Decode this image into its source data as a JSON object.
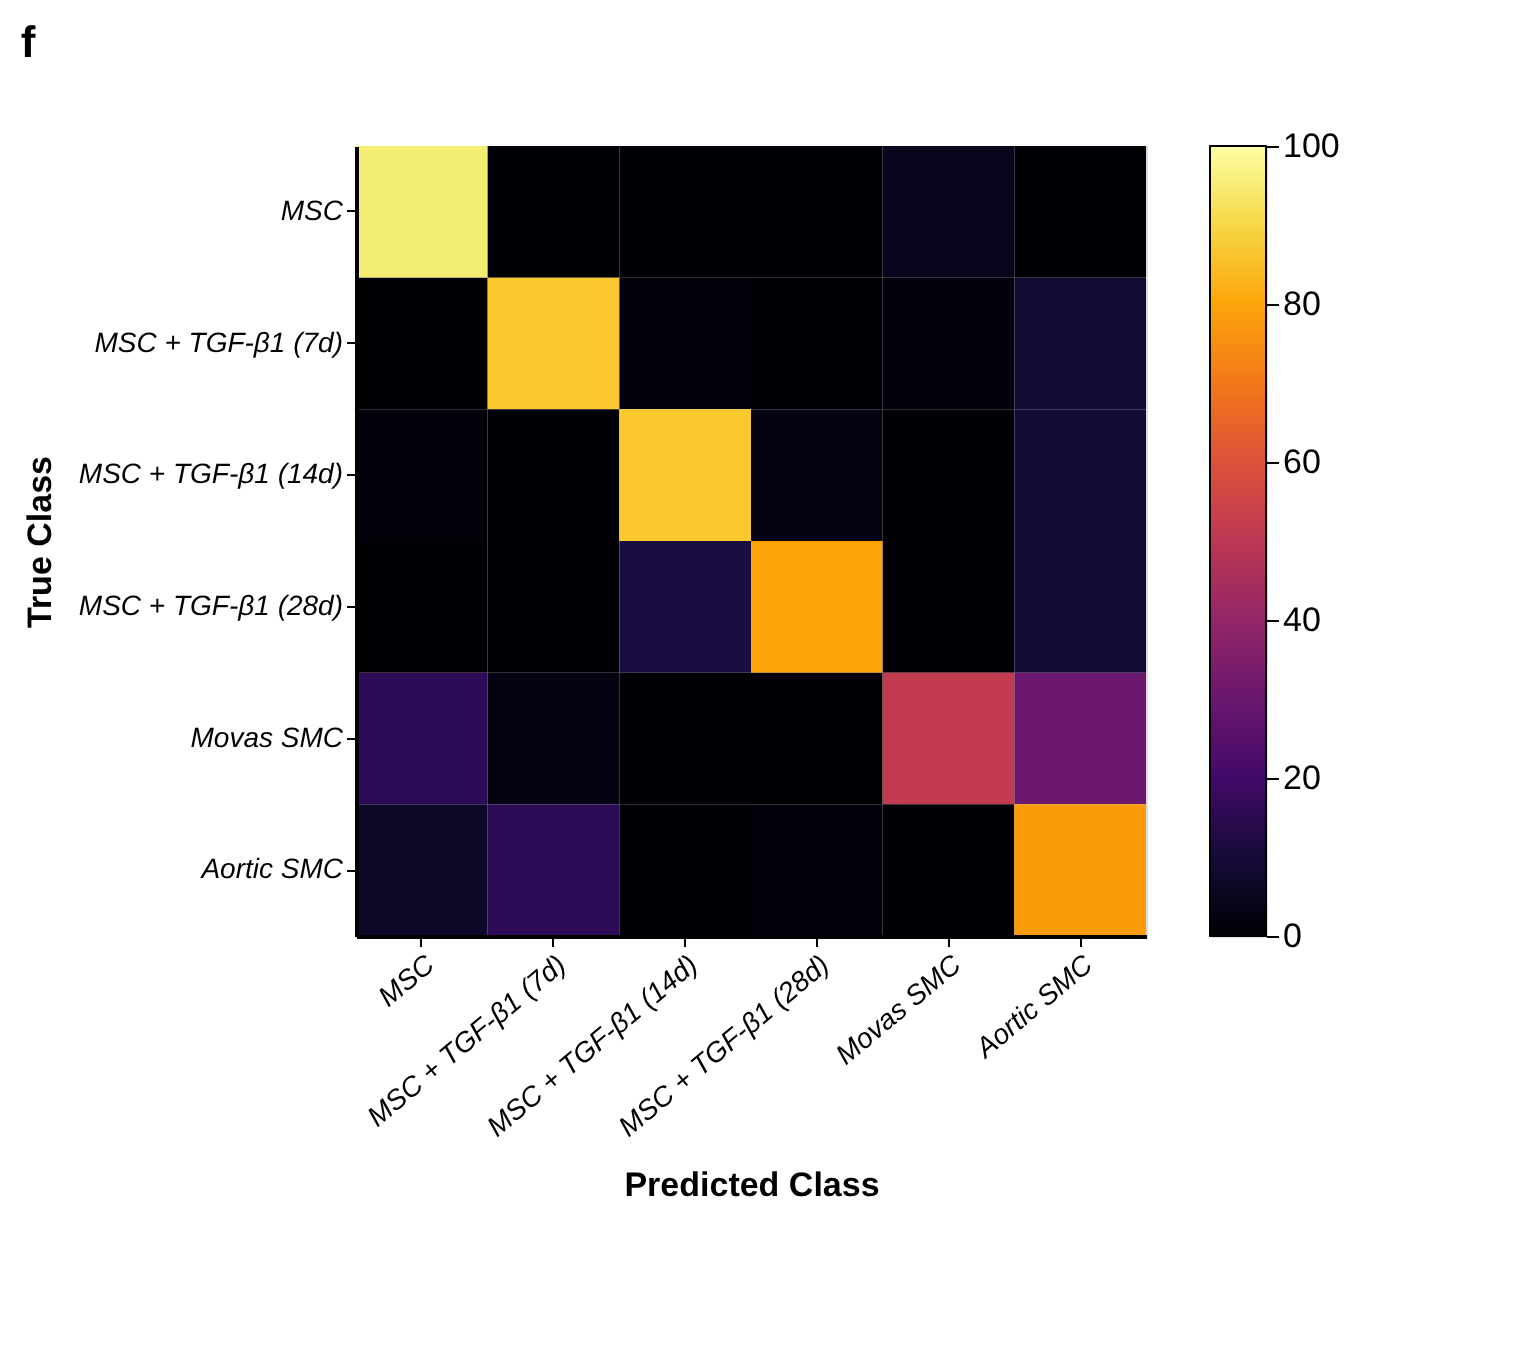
{
  "chart_data": {
    "type": "heatmap",
    "title": "f",
    "xlabel": "Predicted Class",
    "ylabel": "True Class",
    "categories": [
      "MSC",
      "MSC + TGF-β1 (7d)",
      "MSC + TGF-β1 (14d)",
      "MSC + TGF-β1 (28d)",
      "Movas SMC",
      "Aortic SMC"
    ],
    "y_categories": [
      "MSC",
      "MSC + TGF-β1 (7d)",
      "MSC + TGF-β1 (14d)",
      "MSC + TGF-β1 (28d)",
      "Movas SMC",
      "Aortic SMC"
    ],
    "cells": [
      [
        95,
        0,
        0,
        0,
        5,
        0
      ],
      [
        0,
        87,
        2,
        0,
        2,
        9
      ],
      [
        1,
        0,
        87,
        3,
        0,
        9
      ],
      [
        0,
        0,
        11,
        80,
        0,
        9
      ],
      [
        15,
        3,
        0,
        0,
        52,
        30
      ],
      [
        7,
        15,
        0,
        2,
        0,
        78
      ]
    ],
    "clim": [
      0,
      100
    ],
    "cticks": [
      0,
      20,
      40,
      60,
      80,
      100
    ],
    "grid": false
  }
}
